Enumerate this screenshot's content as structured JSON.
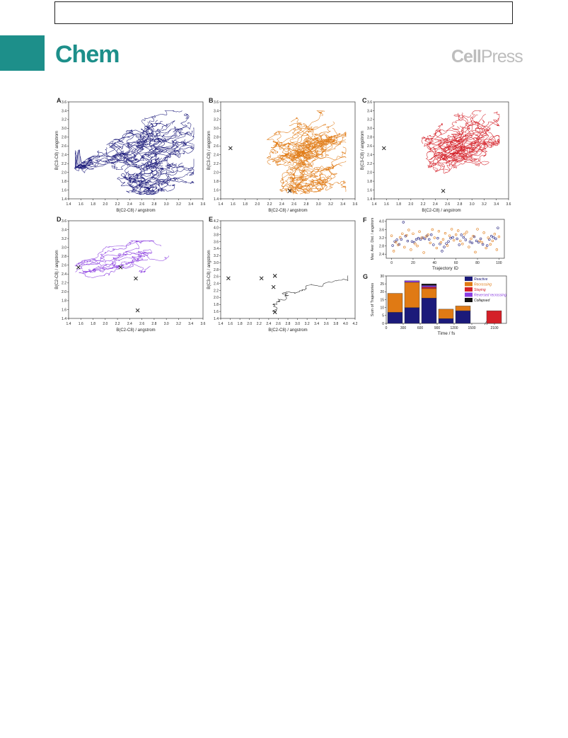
{
  "header": {
    "journal": "Chem",
    "publisher_bold": "Cell",
    "publisher_light": "Press"
  },
  "colors": {
    "A": "#1b1a7a",
    "B": "#e07a14",
    "C": "#d42028",
    "D": "#8a3ce0",
    "E": "#333333",
    "brand": "#1d8f8a"
  },
  "panels": [
    {
      "id": "A",
      "xlabel": "B(C2-C8) / angstrom",
      "ylabel": "B(C3-C8) / angstrom",
      "xticks": [
        "1.4",
        "1.6",
        "1.8",
        "2.0",
        "2.2",
        "2.4",
        "2.6",
        "2.8",
        "3.0",
        "3.2",
        "3.4",
        "3.6"
      ],
      "yticks": [
        "1.4",
        "1.6",
        "1.8",
        "2.0",
        "2.2",
        "2.4",
        "2.6",
        "2.8",
        "3.0",
        "3.2",
        "3.4",
        "3.6"
      ],
      "markers": []
    },
    {
      "id": "B",
      "xlabel": "B(C2-C8) / angstrom",
      "ylabel": "B(C3-C8) / angstrom",
      "xticks": [
        "1.4",
        "1.6",
        "1.8",
        "2.0",
        "2.2",
        "2.4",
        "2.6",
        "2.8",
        "3.0",
        "3.2",
        "3.4",
        "3.6"
      ],
      "yticks": [
        "1.4",
        "1.6",
        "1.8",
        "2.0",
        "2.2",
        "2.4",
        "2.6",
        "2.8",
        "3.0",
        "3.2",
        "3.4",
        "3.6"
      ],
      "markers": [
        [
          1.56,
          2.55
        ],
        [
          2.53,
          1.58
        ]
      ]
    },
    {
      "id": "C",
      "xlabel": "B(C2-C8) / angstrom",
      "ylabel": "B(C3-C8) / angstrom",
      "xticks": [
        "1.4",
        "1.6",
        "1.8",
        "2.0",
        "2.2",
        "2.4",
        "2.6",
        "2.8",
        "3.0",
        "3.2",
        "3.4",
        "3.6"
      ],
      "yticks": [
        "1.4",
        "1.6",
        "1.8",
        "2.0",
        "2.2",
        "2.4",
        "2.6",
        "2.8",
        "3.0",
        "3.2",
        "3.4",
        "3.6"
      ],
      "markers": [
        [
          1.56,
          2.55
        ],
        [
          2.53,
          1.58
        ]
      ]
    },
    {
      "id": "D",
      "xlabel": "B(C2-C8) / angstrom",
      "ylabel": "B(C2-C8) / angstrom",
      "xticks": [
        "1.4",
        "1.6",
        "1.8",
        "2.0",
        "2.2",
        "2.4",
        "2.6",
        "2.8",
        "3.0",
        "3.2",
        "3.4",
        "3.6"
      ],
      "yticks": [
        "1.4",
        "1.6",
        "1.8",
        "2.0",
        "2.2",
        "2.4",
        "2.6",
        "2.8",
        "3.0",
        "3.2",
        "3.4",
        "3.6"
      ],
      "markers": [
        [
          1.56,
          2.55
        ],
        [
          2.25,
          2.55
        ],
        [
          2.5,
          2.3
        ],
        [
          2.53,
          1.58
        ]
      ]
    },
    {
      "id": "E",
      "xlabel": "B(C2-C8) / angstrom",
      "ylabel": "B(C3-C8) / angstrom",
      "xticks": [
        "1.4",
        "1.6",
        "1.8",
        "2.0",
        "2.2",
        "2.4",
        "2.6",
        "2.8",
        "3.0",
        "3.2",
        "3.4",
        "3.6",
        "3.8",
        "4.0",
        "4.2"
      ],
      "yticks": [
        "1.4",
        "1.6",
        "1.8",
        "2.0",
        "2.2",
        "2.4",
        "2.6",
        "2.8",
        "3.0",
        "3.2",
        "3.4",
        "3.6",
        "3.8",
        "4.0",
        "4.2"
      ],
      "markers": [
        [
          1.56,
          2.55
        ],
        [
          2.25,
          2.55
        ],
        [
          2.5,
          2.3
        ],
        [
          2.53,
          2.62
        ],
        [
          2.53,
          1.58
        ]
      ]
    }
  ],
  "panelF": {
    "id": "F",
    "xlabel": "Trajectory ID",
    "ylabel": "Max. Aver. Dist. / angstrom",
    "xticks": [
      "0",
      "20",
      "40",
      "60",
      "80",
      "100"
    ],
    "yticks": [
      "2.4",
      "2.8",
      "3.2",
      "3.6",
      "4.0"
    ]
  },
  "panelG": {
    "id": "G",
    "xlabel": "Time / fs",
    "ylabel": "Sum of Trajectories",
    "xticks": [
      "0",
      "300",
      "600",
      "900",
      "1200",
      "1500",
      "2100"
    ],
    "yticks": [
      "0",
      "5",
      "10",
      "15",
      "20",
      "25",
      "30"
    ]
  },
  "chart_data": [
    {
      "type": "scatter",
      "panel": "F",
      "xlabel": "Trajectory ID",
      "ylabel": "Max. Aver. Dist. / angstrom",
      "xlim": [
        -5,
        105
      ],
      "ylim": [
        2.2,
        4.1
      ],
      "series": [
        {
          "color": "#1b1a7a",
          "x": [
            1,
            3,
            5,
            7,
            9,
            11,
            13,
            15,
            19,
            21,
            23,
            25,
            27,
            29,
            31,
            33,
            35,
            37,
            39,
            43,
            45,
            47,
            49,
            51,
            53,
            55,
            57,
            61,
            63,
            65,
            67,
            69,
            73,
            75,
            77,
            79,
            81,
            83,
            85,
            89,
            91,
            93,
            95,
            97,
            99
          ],
          "y": [
            2.82,
            3.02,
            3.1,
            2.88,
            3.12,
            3.96,
            3.28,
            3.04,
            3.02,
            2.98,
            3.12,
            3.18,
            3.12,
            3.2,
            3.15,
            3.3,
            3.12,
            3.35,
            2.86,
            3.18,
            2.9,
            2.55,
            2.75,
            2.92,
            3.02,
            3.18,
            3.22,
            3.15,
            2.86,
            3.34,
            3.22,
            3.1,
            3.0,
            2.95,
            3.25,
            3.05,
            2.98,
            3.15,
            2.88,
            2.82,
            3.12,
            3.28,
            3.22,
            3.15,
            3.68
          ]
        },
        {
          "color": "#e07a14",
          "x": [
            0,
            2,
            4,
            6,
            8,
            10,
            12,
            14,
            16,
            18,
            20,
            22,
            24,
            26,
            28,
            30,
            32,
            34,
            36,
            38,
            40,
            42,
            44,
            46,
            48,
            50,
            52,
            54,
            56,
            58,
            60,
            62,
            64,
            66,
            68,
            70,
            72,
            74,
            76,
            78,
            80,
            82,
            84,
            86,
            88,
            90,
            92,
            94,
            96,
            98,
            100
          ],
          "y": [
            3.3,
            2.55,
            2.98,
            2.85,
            3.22,
            3.4,
            2.74,
            3.32,
            3.58,
            2.62,
            3.4,
            2.9,
            2.8,
            3.5,
            3.2,
            2.48,
            3.25,
            3.35,
            2.95,
            3.6,
            3.2,
            2.7,
            3.52,
            2.98,
            3.12,
            3.42,
            2.82,
            3.3,
            3.62,
            3.08,
            3.35,
            3.55,
            3.05,
            2.9,
            3.38,
            3.48,
            2.75,
            3.15,
            3.28,
            2.5,
            3.62,
            3.05,
            2.98,
            3.45,
            2.7,
            3.2,
            2.88,
            3.05,
            3.38,
            2.62,
            3.25
          ]
        }
      ]
    },
    {
      "type": "bar",
      "panel": "G",
      "stacked": true,
      "xlabel": "Time / fs",
      "ylabel": "Sum of Trajectories",
      "ylim": [
        0,
        30
      ],
      "categories": [
        "150",
        "450",
        "750",
        "1050",
        "1350",
        "2100"
      ],
      "legend_position": "top-right",
      "series": [
        {
          "name": "Reactive",
          "color": "#1b1a7a",
          "values": [
            7,
            10,
            16,
            3,
            8,
            0
          ]
        },
        {
          "name": "Recrossing",
          "color": "#e07a14",
          "values": [
            12,
            16,
            6,
            6,
            3,
            0
          ]
        },
        {
          "name": "Staying",
          "color": "#d42028",
          "values": [
            0,
            0,
            1,
            0,
            0,
            8
          ]
        },
        {
          "name": "Reversed recrossing",
          "color": "#8a3ce0",
          "values": [
            0,
            1,
            1,
            0,
            0,
            0
          ]
        },
        {
          "name": "Collapsed",
          "color": "#111111",
          "values": [
            0,
            0,
            1,
            0,
            0,
            0
          ]
        }
      ]
    }
  ]
}
